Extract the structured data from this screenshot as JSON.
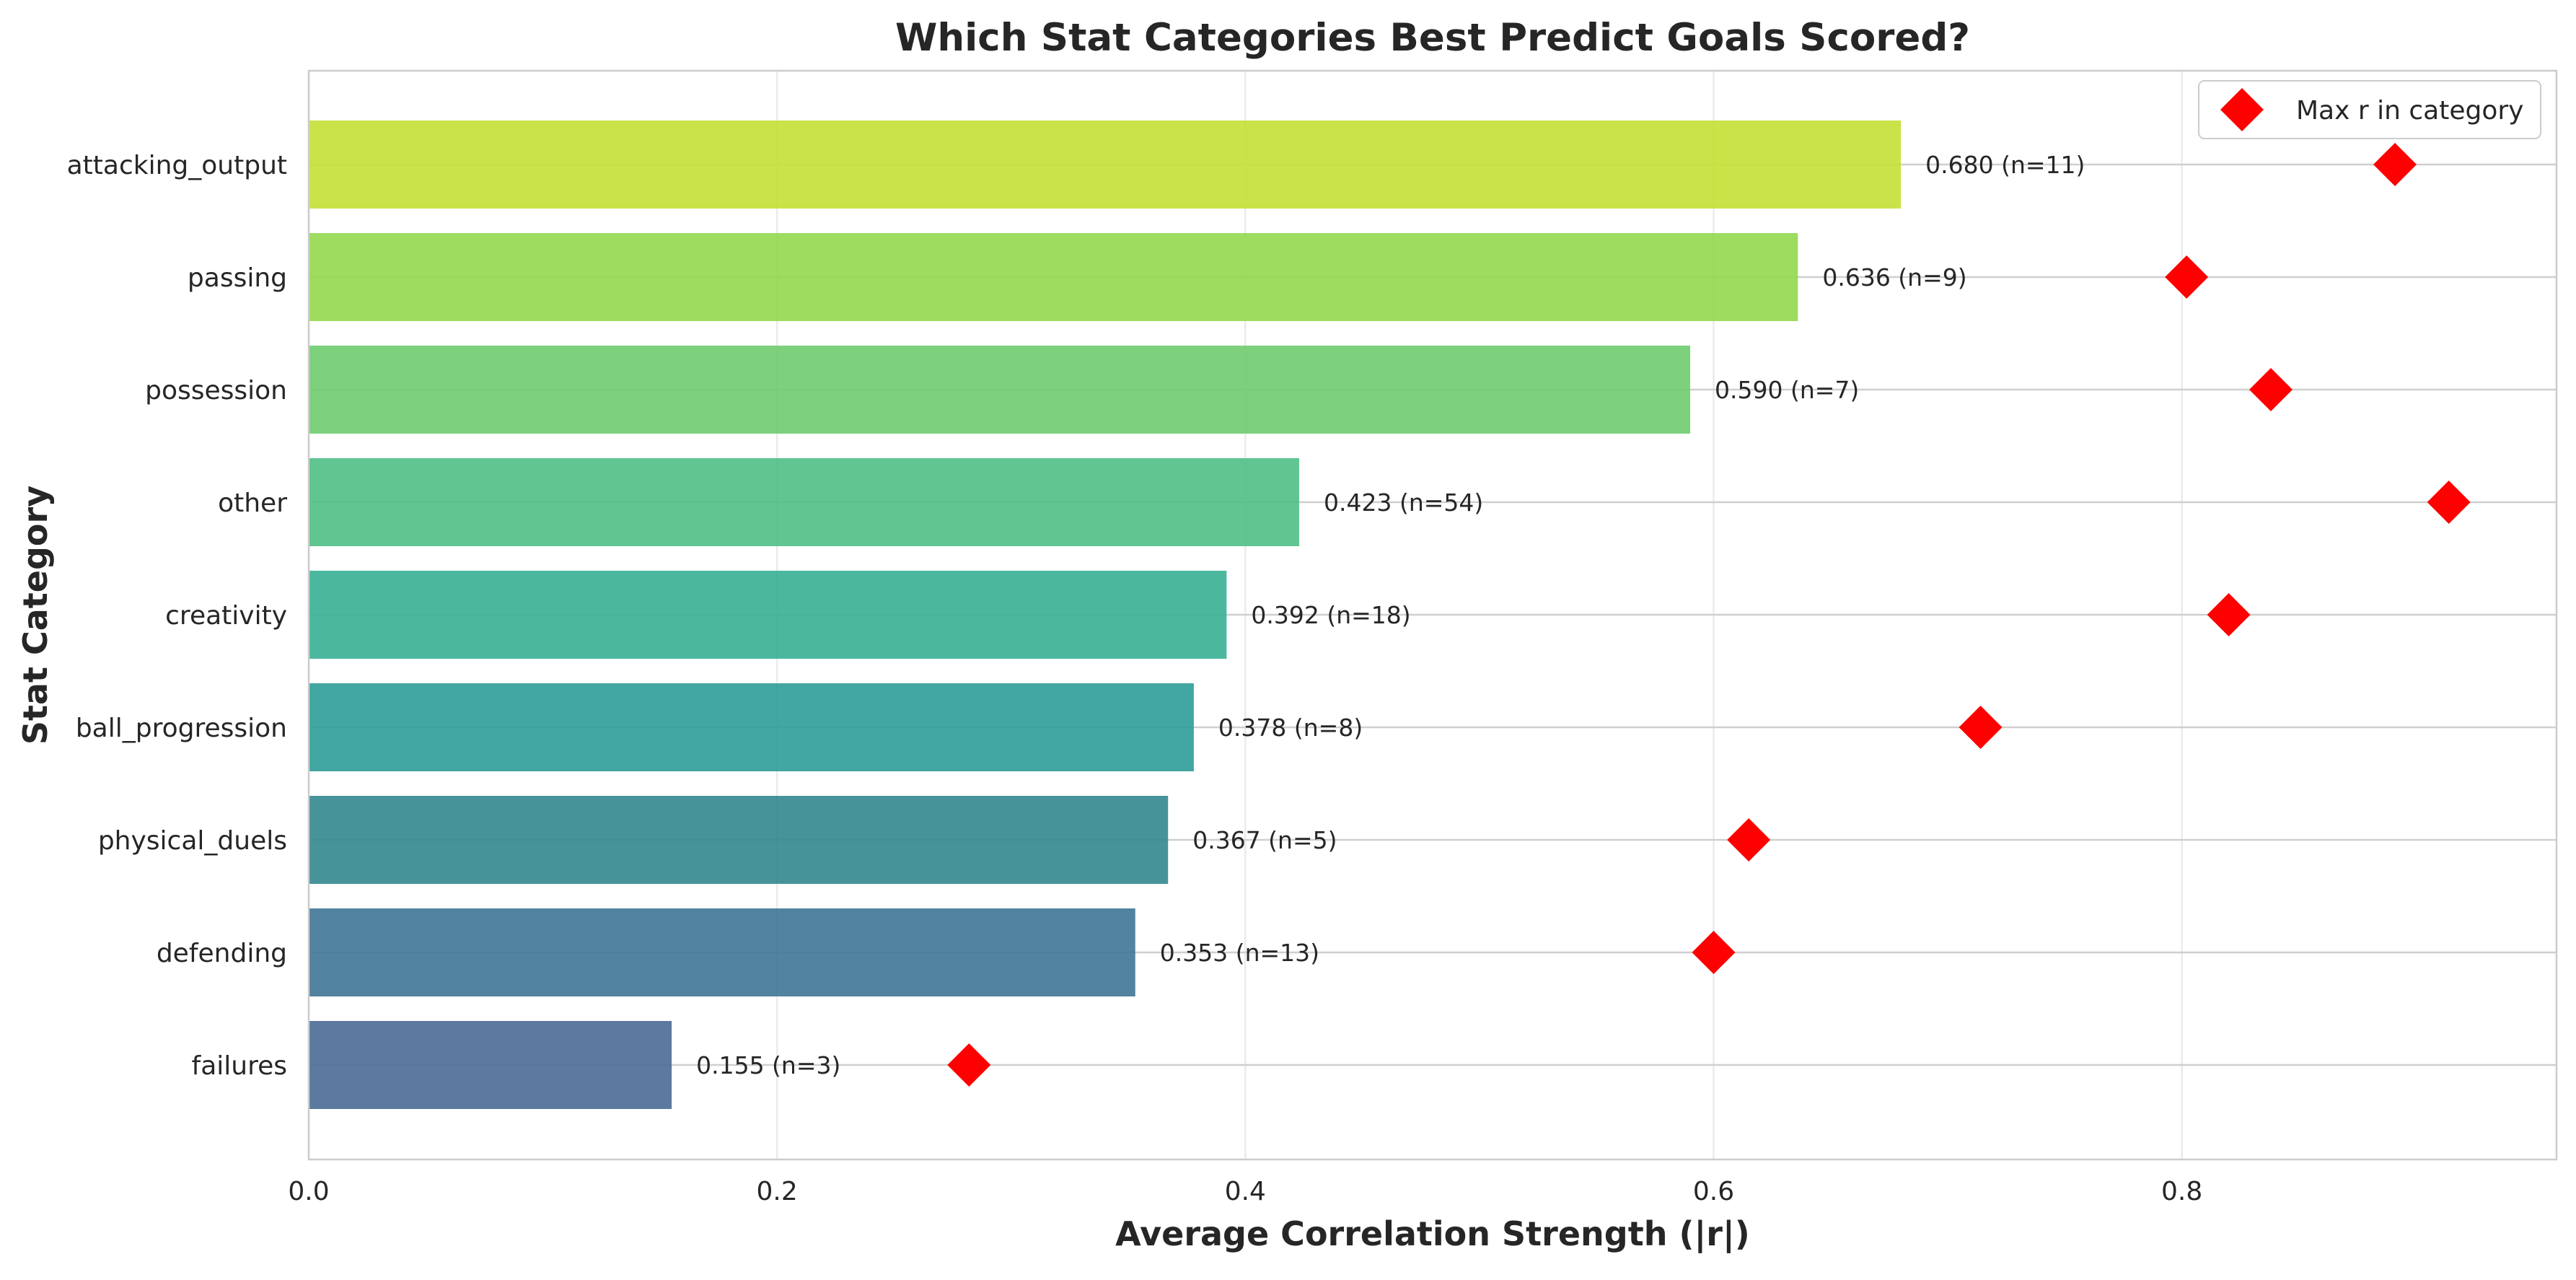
{
  "chart_data": {
    "type": "bar",
    "orientation": "horizontal",
    "title": "Which Stat Categories Best Predict Goals Scored?",
    "xlabel": "Average Correlation Strength (|r|)",
    "ylabel": "Stat Category",
    "xlim": [
      0,
      0.96
    ],
    "xticks": [
      0.0,
      0.2,
      0.4,
      0.6,
      0.8
    ],
    "xtick_labels": [
      "0.0",
      "0.2",
      "0.4",
      "0.6",
      "0.8"
    ],
    "grid": true,
    "categories": [
      "attacking_output",
      "passing",
      "possession",
      "other",
      "creativity",
      "ball_progression",
      "physical_duels",
      "defending",
      "failures"
    ],
    "series": [
      {
        "values": [
          0.68,
          0.636,
          0.59,
          0.423,
          0.392,
          0.378,
          0.367,
          0.353,
          0.155
        ],
        "data_labels": [
          "0.680 (n=11)",
          "0.636 (n=9)",
          "0.590 (n=7)",
          "0.423 (n=54)",
          "0.392 (n=18)",
          "0.378 (n=8)",
          "0.367 (n=5)",
          "0.353 (n=13)",
          "0.155 (n=3)"
        ],
        "colors": [
          "#c4e034",
          "#94d84f",
          "#6fcb6e",
          "#4fbf85",
          "#37b093",
          "#2e9c98",
          "#33878f",
          "#3f7597",
          "#4a6a96"
        ]
      },
      {
        "name": "Max r in category",
        "marker": "diamond",
        "color": "#ff0000",
        "values": [
          0.891,
          0.802,
          0.838,
          0.914,
          0.82,
          0.714,
          0.615,
          0.6,
          0.282
        ]
      }
    ],
    "legend": {
      "position": "top-right",
      "entries": [
        "Max r in category"
      ]
    }
  }
}
